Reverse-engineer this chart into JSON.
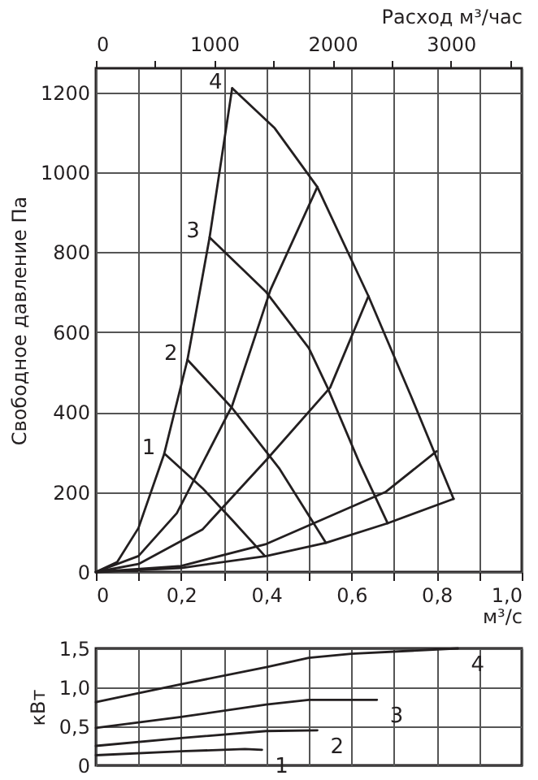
{
  "chart_data": [
    {
      "type": "line",
      "xlabel": "м³/с",
      "ylabel": "Свободное давление Па",
      "x2label": "Расход м³/час",
      "xlim": [
        0,
        1
      ],
      "xticks": [
        0,
        {
          "value": 0.1,
          "label": null
        },
        {
          "value": 0.2,
          "label": "0,2"
        },
        {
          "value": 0.3,
          "label": null
        },
        {
          "value": 0.4,
          "label": "0,4"
        },
        {
          "value": 0.5,
          "label": null
        },
        {
          "value": 0.6,
          "label": "0,6"
        },
        {
          "value": 0.7,
          "label": null
        },
        {
          "value": 0.8,
          "label": "0,8"
        },
        {
          "value": 0.9,
          "label": null
        },
        {
          "value": 1,
          "label": "1,0"
        }
      ],
      "ylim": [
        0,
        1260
      ],
      "yticks": [
        0,
        200,
        400,
        600,
        800,
        1000,
        1200
      ],
      "x2lim": [
        0,
        3600
      ],
      "x2ticks": [
        0,
        {
          "value": 500,
          "label": null
        },
        1000,
        {
          "value": 1500,
          "label": null
        },
        2000,
        {
          "value": 2500,
          "label": null
        },
        3000,
        {
          "value": 3500,
          "label": null
        }
      ],
      "grid": true,
      "series": [
        {
          "name": "1",
          "color": "#231f20",
          "x": [
            0.163,
            0.25,
            0.32,
            0.397
          ],
          "values": [
            294,
            210,
            130,
            40
          ]
        },
        {
          "name": "2",
          "color": "#231f20",
          "x": [
            0.215,
            0.32,
            0.43,
            0.54
          ],
          "values": [
            531,
            410,
            260,
            73
          ]
        },
        {
          "name": "3",
          "color": "#231f20",
          "x": [
            0.267,
            0.4,
            0.5,
            0.544,
            0.62,
            0.685
          ],
          "values": [
            837,
            700,
            560,
            461,
            270,
            122
          ]
        },
        {
          "name": "4",
          "color": "#231f20",
          "x": [
            0.32,
            0.42,
            0.52,
            0.64,
            0.74,
            0.84
          ],
          "values": [
            1210,
            1110,
            963,
            690,
            440,
            183
          ]
        },
        {
          "color": "#231f20",
          "x": [
            0,
            0.05,
            0.1,
            0.16,
            0.215,
            0.267,
            0.32
          ],
          "values": [
            0,
            25,
            110,
            294,
            531,
            837,
            1210
          ]
        },
        {
          "color": "#231f20",
          "x": [
            0,
            0.1,
            0.19,
            0.32,
            0.41,
            0.52
          ],
          "values": [
            0,
            40,
            147,
            416,
            706,
            963
          ]
        },
        {
          "color": "#231f20",
          "x": [
            0,
            0.1,
            0.25,
            0.4,
            0.55,
            0.64
          ],
          "values": [
            0,
            20,
            106,
            280,
            461,
            690
          ]
        },
        {
          "color": "#231f20",
          "x": [
            0,
            0.2,
            0.4,
            0.54,
            0.68,
            0.8
          ],
          "values": [
            0,
            15,
            70,
            135,
            200,
            302
          ]
        },
        {
          "color": "#231f20",
          "x": [
            0,
            0.2,
            0.4,
            0.54,
            0.685,
            0.84
          ],
          "values": [
            0,
            10,
            40,
            73,
            122,
            183
          ]
        }
      ]
    },
    {
      "type": "line",
      "ylabel": "кВт",
      "tick_labels": "y",
      "grid": true,
      "xlim": [
        0,
        1
      ],
      "xticks": [
        0,
        0.1,
        0.2,
        0.3,
        0.4,
        0.5,
        0.6,
        0.7,
        0.8,
        0.9,
        1
      ],
      "ylim": [
        0,
        1.5
      ],
      "yticks": [
        0,
        {
          "value": 0.5,
          "label": "0,5"
        },
        {
          "value": 1,
          "label": "1,0"
        },
        {
          "value": 1.5,
          "label": "1,5"
        }
      ],
      "series": [
        {
          "name": "1",
          "color": "#231f20",
          "x": [
            0,
            0.2,
            0.35,
            0.39
          ],
          "values": [
            0.13,
            0.18,
            0.21,
            0.2
          ]
        },
        {
          "name": "2",
          "color": "#231f20",
          "x": [
            0,
            0.2,
            0.4,
            0.52
          ],
          "values": [
            0.25,
            0.35,
            0.44,
            0.45
          ]
        },
        {
          "name": "3",
          "color": "#231f20",
          "x": [
            0,
            0.2,
            0.4,
            0.5,
            0.66
          ],
          "values": [
            0.48,
            0.62,
            0.78,
            0.84,
            0.84
          ]
        },
        {
          "name": "4",
          "color": "#231f20",
          "x": [
            0,
            0.2,
            0.4,
            0.5,
            0.6,
            0.85
          ],
          "values": [
            0.81,
            1.04,
            1.26,
            1.38,
            1.43,
            1.5
          ]
        }
      ]
    }
  ]
}
